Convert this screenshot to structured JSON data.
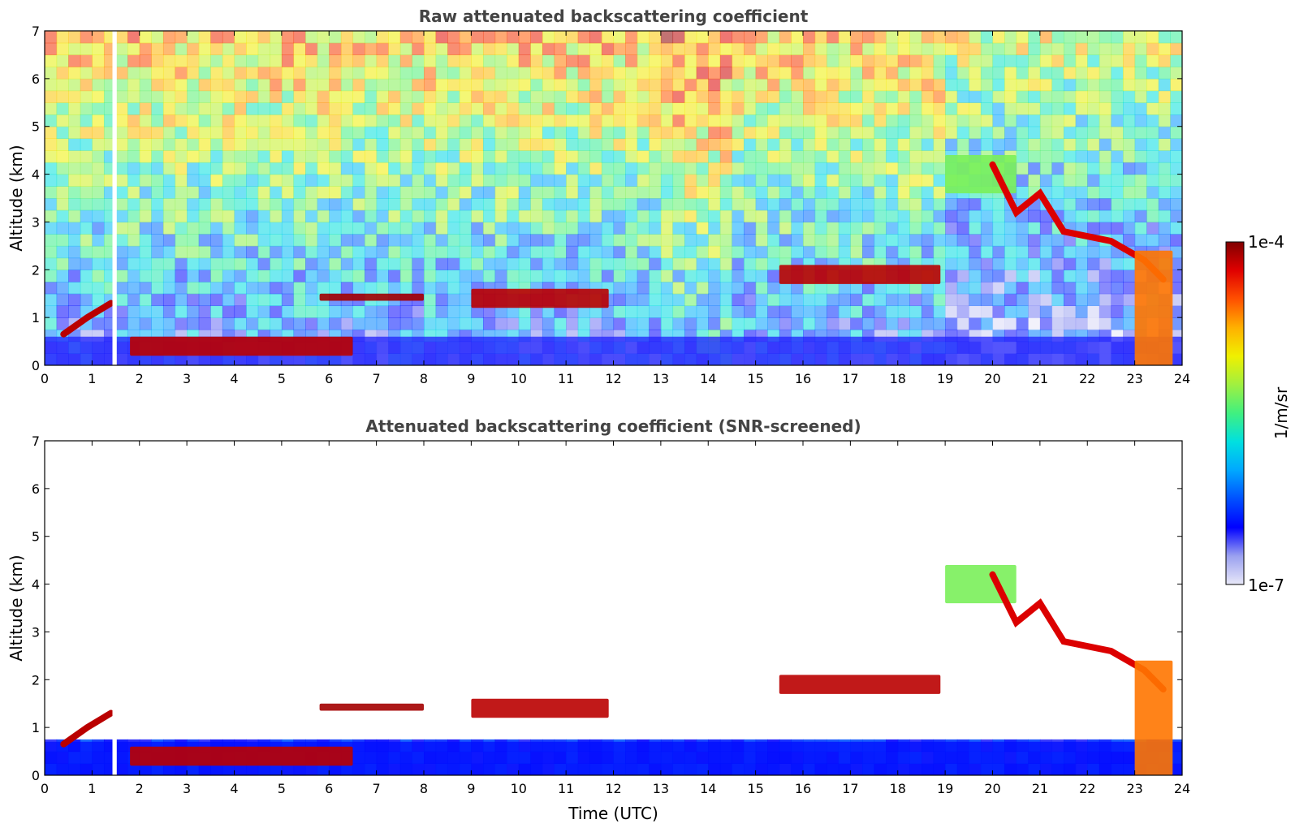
{
  "chart_data": [
    {
      "type": "heatmap",
      "title": "Raw attenuated backscattering coefficient",
      "xlabel": "",
      "ylabel": "Altitude (km)",
      "xlim": [
        0,
        24
      ],
      "ylim": [
        0,
        7
      ],
      "xticks": [
        "0",
        "1",
        "2",
        "3",
        "4",
        "5",
        "6",
        "7",
        "8",
        "9",
        "10",
        "11",
        "12",
        "13",
        "14",
        "15",
        "16",
        "17",
        "18",
        "19",
        "20",
        "21",
        "22",
        "23",
        "24"
      ],
      "yticks": [
        "0",
        "1",
        "2",
        "3",
        "4",
        "5",
        "6",
        "7"
      ],
      "color_scale": "log",
      "data_gap": [
        1.43,
        1.52
      ],
      "features": [
        {
          "name": "aerosol-layer-base",
          "x": [
            0,
            24
          ],
          "altitude": [
            0,
            0.6
          ],
          "level": 0.15
        },
        {
          "name": "rising-boundary-layer-top",
          "x": [
            0.4,
            1.4
          ],
          "altitude": [
            0.65,
            1.3
          ],
          "level": 0.95
        },
        {
          "name": "low-cloud",
          "x": [
            1.8,
            6.5
          ],
          "altitude": [
            0.2,
            0.6
          ],
          "level": 0.95
        },
        {
          "name": "cloud-layer",
          "x": [
            5.8,
            8.0
          ],
          "altitude": [
            1.35,
            1.5
          ],
          "level": 0.97
        },
        {
          "name": "cloud-layer",
          "x": [
            9.0,
            11.9
          ],
          "altitude": [
            1.2,
            1.6
          ],
          "level": 0.95
        },
        {
          "name": "cloud-layer",
          "x": [
            15.5,
            18.9
          ],
          "altitude": [
            1.7,
            2.1
          ],
          "level": 0.95
        },
        {
          "name": "cirrus",
          "x": [
            19.0,
            20.5
          ],
          "altitude": [
            3.6,
            4.4
          ],
          "level": 0.55
        },
        {
          "name": "descending-cloud",
          "x": [
            20.0,
            23.8
          ],
          "altitude": [
            1.6,
            4.2
          ],
          "level": 0.92
        },
        {
          "name": "precipitation",
          "x": [
            23.0,
            23.8
          ],
          "altitude": [
            0,
            2.4
          ],
          "level": 0.8
        }
      ]
    },
    {
      "type": "heatmap",
      "title": "Attenuated backscattering coefficient (SNR-screened)",
      "xlabel": "Time (UTC)",
      "ylabel": "Altitude (km)",
      "xlim": [
        0,
        24
      ],
      "ylim": [
        0,
        7
      ],
      "xticks": [
        "0",
        "1",
        "2",
        "3",
        "4",
        "5",
        "6",
        "7",
        "8",
        "9",
        "10",
        "11",
        "12",
        "13",
        "14",
        "15",
        "16",
        "17",
        "18",
        "19",
        "20",
        "21",
        "22",
        "23",
        "24"
      ],
      "yticks": [
        "0",
        "1",
        "2",
        "3",
        "4",
        "5",
        "6",
        "7"
      ],
      "color_scale": "log",
      "data_gap": [
        1.43,
        1.52
      ],
      "features": [
        {
          "name": "aerosol-layer-base",
          "x": [
            0,
            24
          ],
          "altitude": [
            0,
            0.7
          ],
          "level": 0.18
        },
        {
          "name": "rising-boundary-layer-top",
          "x": [
            0.4,
            1.4
          ],
          "altitude": [
            0.65,
            1.3
          ],
          "level": 0.95
        },
        {
          "name": "low-cloud",
          "x": [
            1.8,
            6.5
          ],
          "altitude": [
            0.2,
            0.6
          ],
          "level": 0.95
        },
        {
          "name": "cloud-layer",
          "x": [
            5.8,
            8.0
          ],
          "altitude": [
            1.35,
            1.5
          ],
          "level": 0.97
        },
        {
          "name": "cloud-layer",
          "x": [
            9.0,
            11.9
          ],
          "altitude": [
            1.2,
            1.6
          ],
          "level": 0.95
        },
        {
          "name": "cloud-layer",
          "x": [
            15.5,
            18.9
          ],
          "altitude": [
            1.7,
            2.1
          ],
          "level": 0.95
        },
        {
          "name": "cirrus",
          "x": [
            19.0,
            20.5
          ],
          "altitude": [
            3.6,
            4.4
          ],
          "level": 0.55
        },
        {
          "name": "descending-cloud",
          "x": [
            20.0,
            23.8
          ],
          "altitude": [
            1.6,
            4.2
          ],
          "level": 0.92
        },
        {
          "name": "precipitation",
          "x": [
            23.0,
            23.8
          ],
          "altitude": [
            0,
            2.4
          ],
          "level": 0.8
        }
      ]
    }
  ],
  "colorbar": {
    "label": "1/m/sr",
    "max_label": "1e-4",
    "min_label": "1e-7",
    "stops": [
      "#e8e8f8",
      "#9aa0f0",
      "#0000ff",
      "#0050ff",
      "#00a8ff",
      "#00e0e0",
      "#40f080",
      "#a0f040",
      "#f0f000",
      "#ffb000",
      "#ff5000",
      "#e00000",
      "#800000"
    ]
  }
}
